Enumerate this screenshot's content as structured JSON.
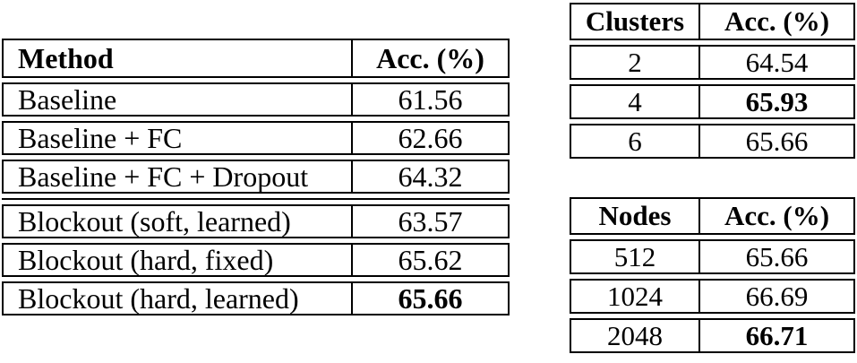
{
  "canvas": {
    "background": "#ffffff",
    "border_color": "#000000",
    "text_color": "#000000"
  },
  "tables": [
    {
      "id": "method",
      "title": "method-accuracy-table",
      "columns": [
        "Method",
        "Acc. (%)"
      ],
      "rows": [
        {
          "label": "Baseline",
          "value": "61.56",
          "bold_value": false,
          "group": 1
        },
        {
          "label": "Baseline + FC",
          "value": "62.66",
          "bold_value": false,
          "group": 1
        },
        {
          "label": "Baseline + FC + Dropout",
          "value": "64.32",
          "bold_value": false,
          "group": 1
        },
        {
          "label": "Blockout (soft, learned)",
          "value": "63.57",
          "bold_value": false,
          "group": 2
        },
        {
          "label": "Blockout (hard, fixed)",
          "value": "65.62",
          "bold_value": false,
          "group": 2
        },
        {
          "label": "Blockout (hard, learned)",
          "value": "65.66",
          "bold_value": true,
          "group": 2
        }
      ]
    },
    {
      "id": "clusters",
      "title": "clusters-accuracy-table",
      "columns": [
        "Clusters",
        "Acc. (%)"
      ],
      "rows": [
        {
          "label": "2",
          "value": "64.54",
          "bold_value": false,
          "group": 1
        },
        {
          "label": "4",
          "value": "65.93",
          "bold_value": true,
          "group": 1
        },
        {
          "label": "6",
          "value": "65.66",
          "bold_value": false,
          "group": 1
        }
      ]
    },
    {
      "id": "nodes",
      "title": "nodes-accuracy-table",
      "columns": [
        "Nodes",
        "Acc. (%)"
      ],
      "rows": [
        {
          "label": "512",
          "value": "65.66",
          "bold_value": false,
          "group": 1
        },
        {
          "label": "1024",
          "value": "66.69",
          "bold_value": false,
          "group": 1
        },
        {
          "label": "2048",
          "value": "66.71",
          "bold_value": true,
          "group": 1
        }
      ]
    }
  ]
}
